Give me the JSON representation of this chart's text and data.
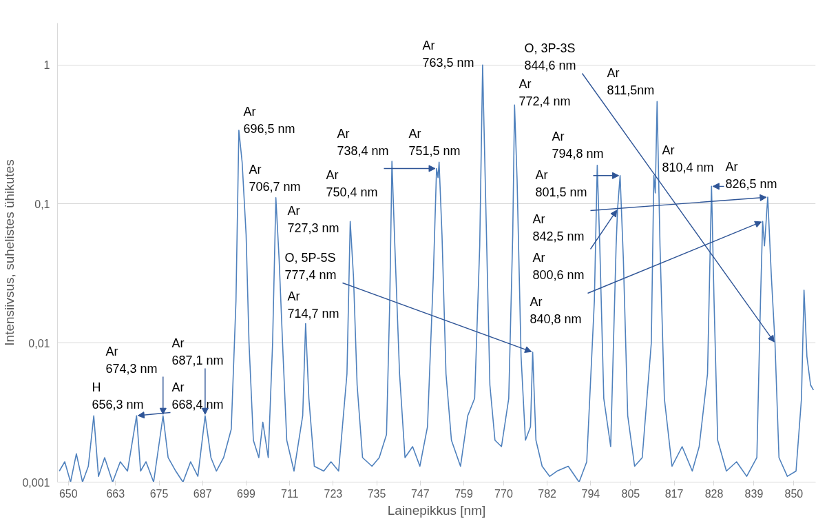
{
  "chart_data": {
    "type": "line",
    "xlabel": "Lainepikkus [nm]",
    "ylabel": "Intensiivsus, suhelistes ühikutes",
    "log": "y",
    "grid": "y",
    "xlim": [
      647,
      856
    ],
    "ylim": [
      0.001,
      2
    ],
    "xticks": [
      650,
      663,
      675,
      687,
      699,
      711,
      723,
      735,
      747,
      759,
      770,
      782,
      794,
      805,
      817,
      828,
      839,
      850
    ],
    "yticks": [
      {
        "value": 0.001,
        "label": "0,001"
      },
      {
        "value": 0.01,
        "label": "0,01"
      },
      {
        "value": 0.1,
        "label": "0,1"
      },
      1
    ],
    "series": [
      {
        "color": "#4f81bd",
        "x": [
          647.5,
          649,
          650.6,
          652.2,
          653.9,
          655.5,
          657.0,
          658.3,
          660.0,
          662.2,
          664.3,
          666.3,
          668.8,
          669.9,
          671.4,
          673.5,
          676.1,
          677.5,
          679.6,
          681.6,
          683.7,
          685.7,
          687.7,
          689.3,
          690.8,
          692.8,
          694.9,
          696.2,
          697.0,
          697.9,
          699.0,
          699.8,
          701.0,
          702.5,
          703.6,
          705.1,
          706.3,
          707.2,
          708.1,
          709.2,
          710.2,
          712.2,
          714.6,
          715.4,
          716.3,
          717.8,
          720.4,
          722.4,
          724.5,
          726.8,
          727.7,
          728.6,
          729.6,
          731.1,
          733.7,
          735.7,
          737.7,
          738.6,
          739.2,
          740.0,
          741.3,
          742.8,
          744.9,
          746.9,
          749.0,
          750.6,
          751.5,
          751.9,
          752.2,
          753.0,
          754.1,
          755.6,
          758.1,
          760.1,
          762.0,
          763.4,
          764.2,
          765.0,
          766.2,
          767.6,
          769.4,
          771.4,
          772.5,
          773.0,
          773.7,
          774.8,
          776.0,
          777.4,
          778.0,
          778.9,
          780.6,
          782.7,
          784.7,
          787.8,
          790.8,
          792.9,
          795.0,
          795.8,
          796.5,
          797.6,
          799.5,
          801.0,
          801.4,
          802.1,
          803.0,
          804.2,
          806.1,
          808.2,
          810.7,
          811.4,
          811.8,
          812.3,
          813.1,
          814.3,
          816.4,
          819.2,
          822.0,
          823.9,
          826.2,
          827.3,
          828.0,
          829.0,
          831.4,
          834.2,
          837.0,
          839.8,
          840.8,
          841.4,
          841.9,
          842.8,
          843.8,
          844.8,
          845.9,
          848.2,
          850.6,
          852.1,
          852.8,
          853.6,
          854.6,
          855.4
        ],
        "values": [
          0.0012,
          0.0014,
          0.001,
          0.0016,
          0.001,
          0.0013,
          0.003,
          0.0011,
          0.0015,
          0.001,
          0.0014,
          0.0012,
          0.003,
          0.0012,
          0.0014,
          0.001,
          0.003,
          0.0015,
          0.0012,
          0.001,
          0.0014,
          0.0011,
          0.003,
          0.0015,
          0.0012,
          0.0015,
          0.0024,
          0.02,
          0.339,
          0.2,
          0.06,
          0.01,
          0.002,
          0.0015,
          0.0027,
          0.0015,
          0.01,
          0.111,
          0.04,
          0.008,
          0.002,
          0.0012,
          0.003,
          0.0138,
          0.004,
          0.0013,
          0.0012,
          0.0014,
          0.0012,
          0.006,
          0.075,
          0.03,
          0.005,
          0.0015,
          0.0013,
          0.0015,
          0.0022,
          0.02,
          0.203,
          0.05,
          0.006,
          0.0015,
          0.0018,
          0.0013,
          0.0025,
          0.03,
          0.18,
          0.155,
          0.2,
          0.06,
          0.006,
          0.002,
          0.0013,
          0.003,
          0.004,
          0.05,
          1.0,
          0.12,
          0.005,
          0.002,
          0.0018,
          0.004,
          0.06,
          0.515,
          0.15,
          0.008,
          0.002,
          0.0025,
          0.0086,
          0.002,
          0.0013,
          0.0011,
          0.0012,
          0.0013,
          0.001,
          0.0014,
          0.02,
          0.19,
          0.05,
          0.004,
          0.0018,
          0.05,
          0.092,
          0.16,
          0.04,
          0.003,
          0.0013,
          0.0015,
          0.01,
          0.16,
          0.12,
          0.546,
          0.05,
          0.004,
          0.0013,
          0.0018,
          0.0012,
          0.0018,
          0.006,
          0.134,
          0.02,
          0.002,
          0.0012,
          0.0014,
          0.0011,
          0.0015,
          0.02,
          0.075,
          0.05,
          0.112,
          0.03,
          0.01,
          0.0015,
          0.0011,
          0.0012,
          0.004,
          0.024,
          0.008,
          0.005,
          0.0046
        ]
      }
    ],
    "annotations": [
      {
        "text": "H\n656,3 nm",
        "x": 657.0,
        "y": 0.003
      },
      {
        "text": "Ar\n668,4 nm",
        "x": 668.8,
        "y": 0.003
      },
      {
        "text": "Ar\n674,3 nm",
        "x": 676.1,
        "y": 0.003
      },
      {
        "text": "Ar\n687,1 nm",
        "x": 687.7,
        "y": 0.003
      },
      {
        "text": "Ar\n696,5 nm",
        "x": 697.0,
        "y": 0.339
      },
      {
        "text": "Ar\n706,7 nm",
        "x": 707.2,
        "y": 0.111
      },
      {
        "text": "Ar\n714,7 nm",
        "x": 715.4,
        "y": 0.0138
      },
      {
        "text": "Ar\n727,3 nm",
        "x": 727.7,
        "y": 0.075
      },
      {
        "text": "Ar\n738,4 nm",
        "x": 739.2,
        "y": 0.203
      },
      {
        "text": "Ar\n750,4 nm",
        "x": 751.5,
        "y": 0.18
      },
      {
        "text": "Ar\n751,5 nm",
        "x": 752.2,
        "y": 0.2
      },
      {
        "text": "Ar\n763,5 nm",
        "x": 764.2,
        "y": 1.0
      },
      {
        "text": "Ar\n772,4 nm",
        "x": 773.0,
        "y": 0.515
      },
      {
        "text": "Ar\n794,8 nm",
        "x": 795.8,
        "y": 0.19
      },
      {
        "text": "Ar\n800,6 nm",
        "x": 801.4,
        "y": 0.092
      },
      {
        "text": "Ar\n801,5 nm",
        "x": 802.1,
        "y": 0.16
      },
      {
        "text": "Ar\n811,5nm",
        "x": 812.3,
        "y": 0.546
      },
      {
        "text": "Ar\n810,4 nm",
        "x": 811.4,
        "y": 0.16
      },
      {
        "text": "Ar\n826,5 nm",
        "x": 827.3,
        "y": 0.134
      },
      {
        "text": "Ar\n840,8 nm",
        "x": 841.4,
        "y": 0.075
      },
      {
        "text": "Ar\n842,5 nm",
        "x": 842.8,
        "y": 0.112
      },
      {
        "text": "O, 5P-5S\n777,4 nm",
        "x": 778.0,
        "y": 0.0086
      },
      {
        "text": "O, 3P-3S\n844,6 nm",
        "x": 844.8,
        "y": 0.01
      }
    ]
  }
}
